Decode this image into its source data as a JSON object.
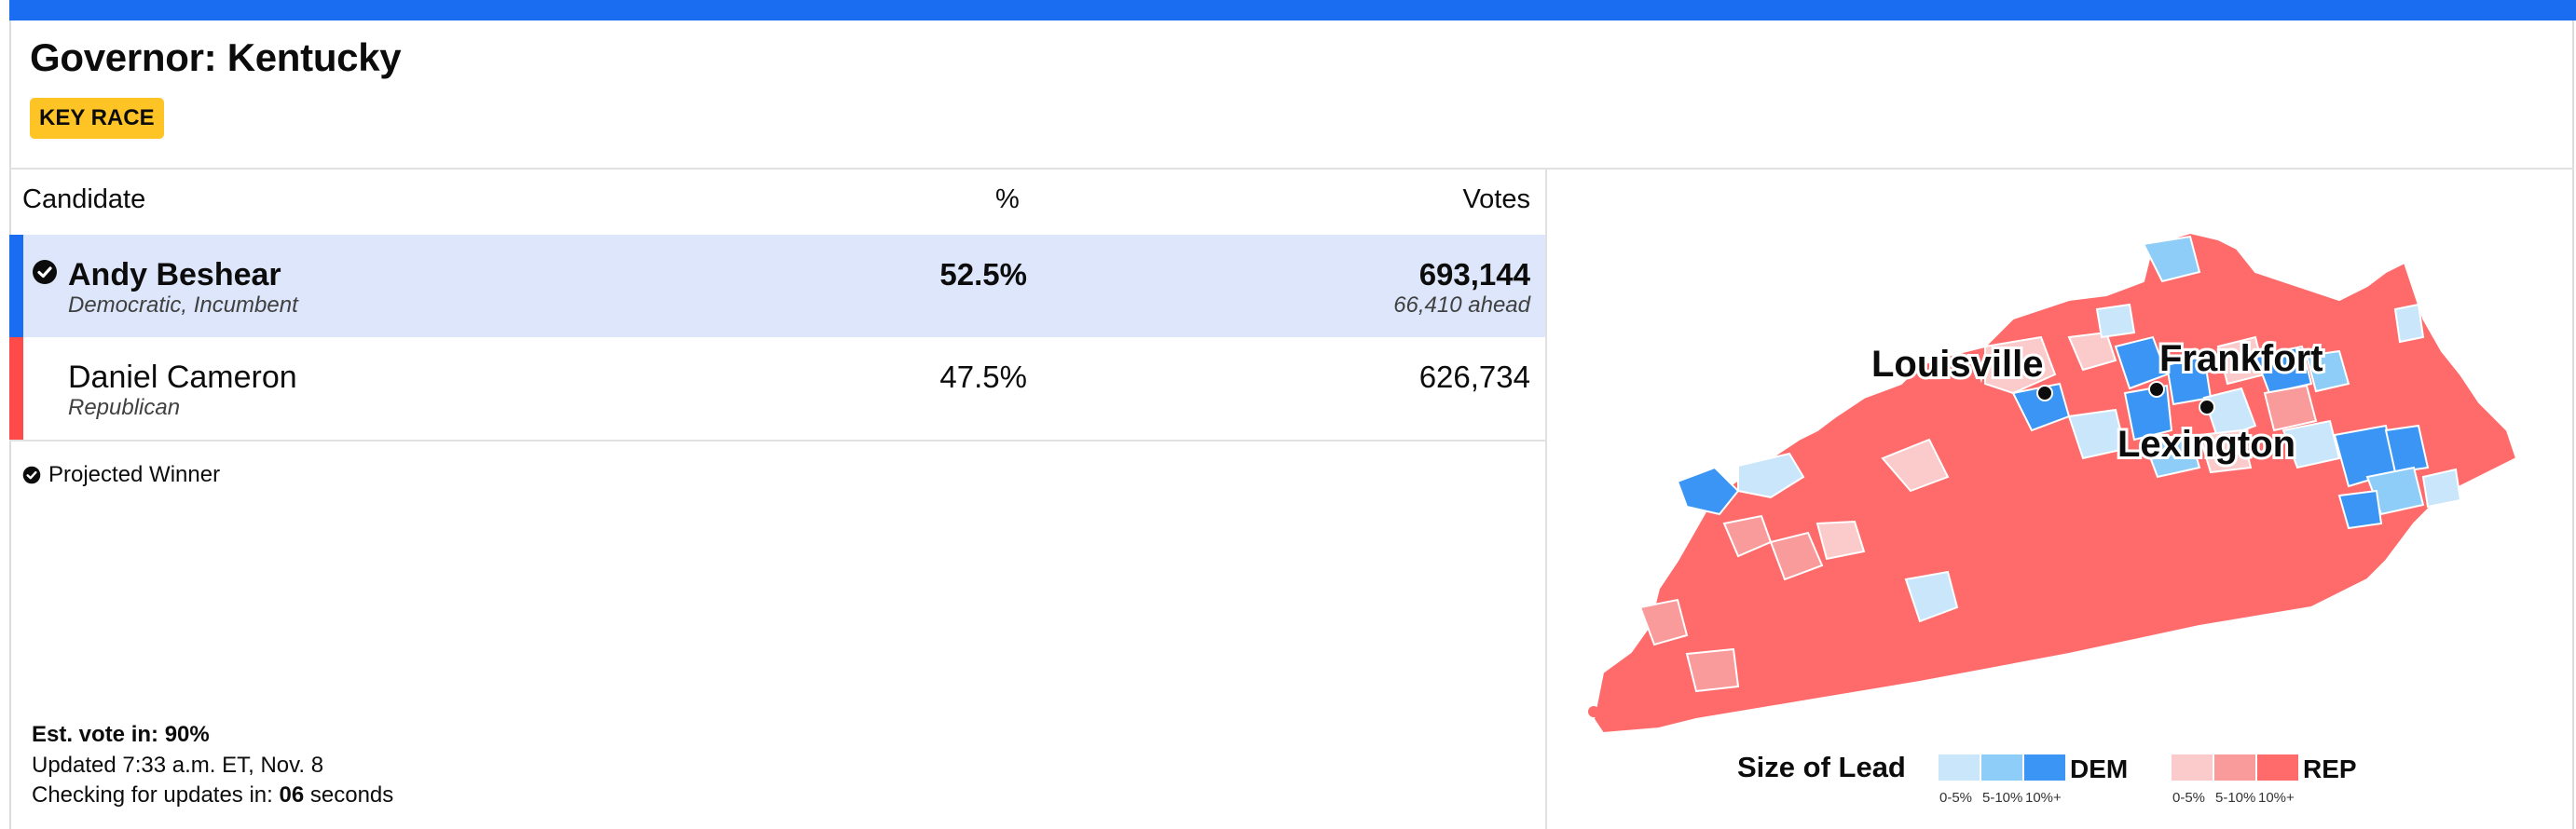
{
  "race": {
    "title": "Governor: Kentucky",
    "badge": "KEY RACE"
  },
  "table": {
    "headers": {
      "candidate": "Candidate",
      "percent": "%",
      "votes": "Votes"
    },
    "rows": [
      {
        "name": "Andy Beshear",
        "party": "Democratic, Incumbent",
        "percent": "52.5%",
        "votes": "693,144",
        "ahead": "66,410 ahead",
        "winner": true,
        "color": "#1a6df0"
      },
      {
        "name": "Daniel Cameron",
        "party": "Republican",
        "percent": "47.5%",
        "votes": "626,734",
        "ahead": "",
        "winner": false,
        "color": "#ff4a4a"
      }
    ]
  },
  "projected_winner_label": "Projected Winner",
  "status": {
    "est_vote_label": "Est. vote in: ",
    "est_vote_value": "90%",
    "updated": "Updated 7:33 a.m. ET, Nov. 8",
    "checking_prefix": "Checking for updates in: ",
    "checking_seconds": "06",
    "checking_suffix": " seconds"
  },
  "map": {
    "cities": [
      "Louisville",
      "Frankfort",
      "Lexington"
    ],
    "legend": {
      "title": "Size of Lead",
      "dem_label": "DEM",
      "rep_label": "REP",
      "bins": [
        "0-5%",
        "5-10%",
        "10%+"
      ],
      "dem_colors": [
        "#c9e6fb",
        "#8ecdf8",
        "#3b95f5"
      ],
      "rep_colors": [
        "#fbcaca",
        "#f99b9b",
        "#ff6b6b"
      ]
    }
  },
  "colors": {
    "accent": "#1a6df0",
    "badge": "#fec425",
    "winner_row": "#dde6fa"
  }
}
